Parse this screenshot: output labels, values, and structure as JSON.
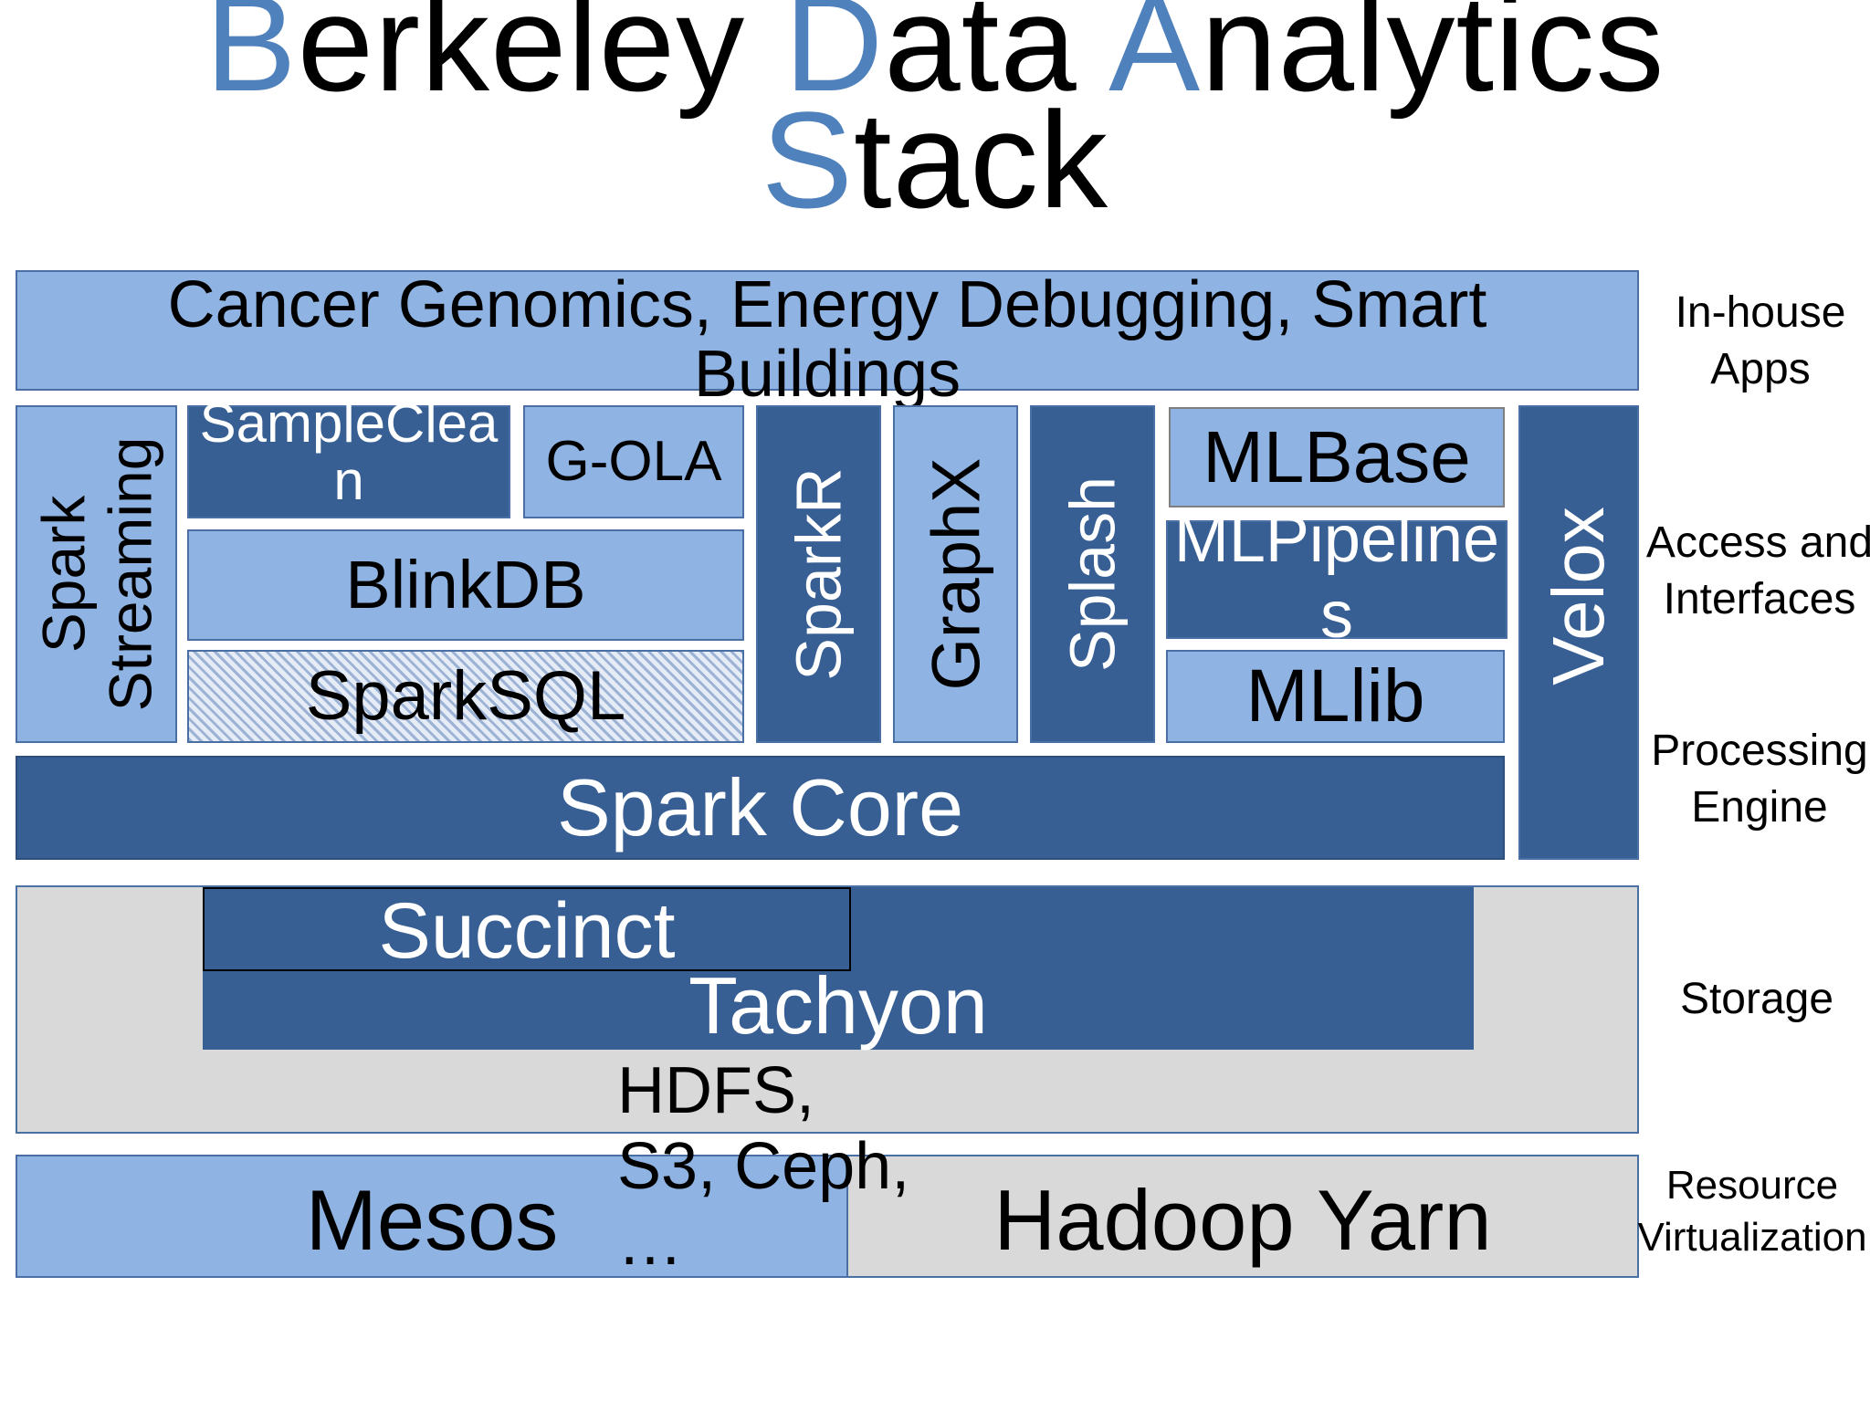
{
  "title": {
    "line1": [
      {
        "text": "B",
        "accent": true
      },
      {
        "text": "erkeley ",
        "accent": false
      },
      {
        "text": "D",
        "accent": true
      },
      {
        "text": "ata ",
        "accent": false
      },
      {
        "text": "A",
        "accent": true
      },
      {
        "text": "nalytics",
        "accent": false
      }
    ],
    "line2": [
      {
        "text": "S",
        "accent": true
      },
      {
        "text": "tack",
        "accent": false
      }
    ]
  },
  "colors": {
    "accent": "#4f81bd",
    "light_block": "#8fb3e2",
    "dark_block": "#375f93",
    "storage_gray": "#d9d9d9"
  },
  "apps": "Cancer Genomics, Energy Debugging, Smart Buildings",
  "components": {
    "spark_streaming": "Spark Streaming",
    "sampleclean": "SampleClean",
    "gola": "G-OLA",
    "blinkdb": "BlinkDB",
    "sparksql": "SparkSQL",
    "sparkr": "SparkR",
    "graphx": "GraphX",
    "splash": "Splash",
    "mlbase": "MLBase",
    "mlpipelines": "MLPipelines",
    "mllib": "MLlib",
    "velox": "Velox",
    "spark_core": "Spark Core",
    "succinct": "Succinct",
    "tachyon": "Tachyon",
    "hdfs": "HDFS, S3, Ceph, …",
    "mesos": "Mesos",
    "yarn": "Hadoop Yarn"
  },
  "layers": {
    "inhouse": "In-house Apps",
    "access": "Access and Interfaces",
    "processing": "Processing Engine",
    "storage": "Storage",
    "resource": "Resource Virtualization"
  }
}
